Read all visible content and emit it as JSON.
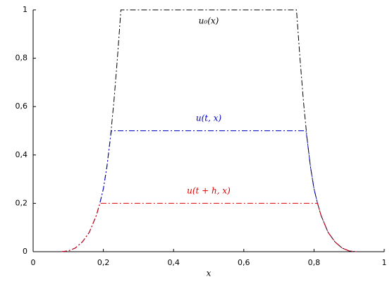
{
  "chart_data": {
    "type": "line",
    "xlabel": "x",
    "xlim": [
      0,
      1
    ],
    "ylim": [
      0,
      1
    ],
    "xticks": [
      0,
      {
        "value": 0.2,
        "label": "0,2"
      },
      {
        "value": 0.4,
        "label": "0,4"
      },
      {
        "value": 0.6,
        "label": "0,6"
      },
      {
        "value": 0.8,
        "label": "0,8"
      },
      1
    ],
    "yticks": [
      0,
      {
        "value": 0.2,
        "label": "0,2"
      },
      {
        "value": 0.4,
        "label": "0,4"
      },
      {
        "value": 0.6,
        "label": "0,6"
      },
      {
        "value": 0.8,
        "label": "0,8"
      },
      1
    ],
    "series": [
      {
        "name": "u₀(x)",
        "color": "#000000",
        "x": [
          0.08,
          0.1,
          0.12,
          0.14,
          0.16,
          0.18,
          0.19,
          0.2,
          0.21,
          0.22,
          0.23,
          0.24,
          0.25,
          0.75,
          0.76,
          0.77,
          0.78,
          0.79,
          0.8,
          0.81,
          0.82,
          0.84,
          0.86,
          0.88,
          0.9,
          0.92
        ],
        "values": [
          0,
          0.003,
          0.015,
          0.04,
          0.08,
          0.15,
          0.2,
          0.26,
          0.35,
          0.47,
          0.62,
          0.8,
          1,
          1,
          0.8,
          0.62,
          0.47,
          0.35,
          0.26,
          0.2,
          0.15,
          0.08,
          0.04,
          0.015,
          0.003,
          0
        ]
      },
      {
        "name": "u(t, x)",
        "color": "#0000cc",
        "x": [
          0.08,
          0.1,
          0.12,
          0.14,
          0.16,
          0.18,
          0.19,
          0.2,
          0.21,
          0.22,
          0.223,
          0.777,
          0.78,
          0.79,
          0.8,
          0.81,
          0.82,
          0.84,
          0.86,
          0.88,
          0.9,
          0.92
        ],
        "values": [
          0,
          0.003,
          0.015,
          0.04,
          0.08,
          0.15,
          0.2,
          0.26,
          0.35,
          0.47,
          0.5,
          0.5,
          0.47,
          0.35,
          0.26,
          0.2,
          0.15,
          0.08,
          0.04,
          0.015,
          0.003,
          0
        ]
      },
      {
        "name": "u(t + h, x)",
        "color": "#dd0000",
        "x": [
          0.08,
          0.1,
          0.12,
          0.14,
          0.16,
          0.18,
          0.19,
          0.81,
          0.82,
          0.84,
          0.86,
          0.88,
          0.9,
          0.92
        ],
        "values": [
          0,
          0.003,
          0.015,
          0.04,
          0.08,
          0.15,
          0.2,
          0.2,
          0.15,
          0.08,
          0.04,
          0.015,
          0.003,
          0
        ]
      }
    ]
  }
}
